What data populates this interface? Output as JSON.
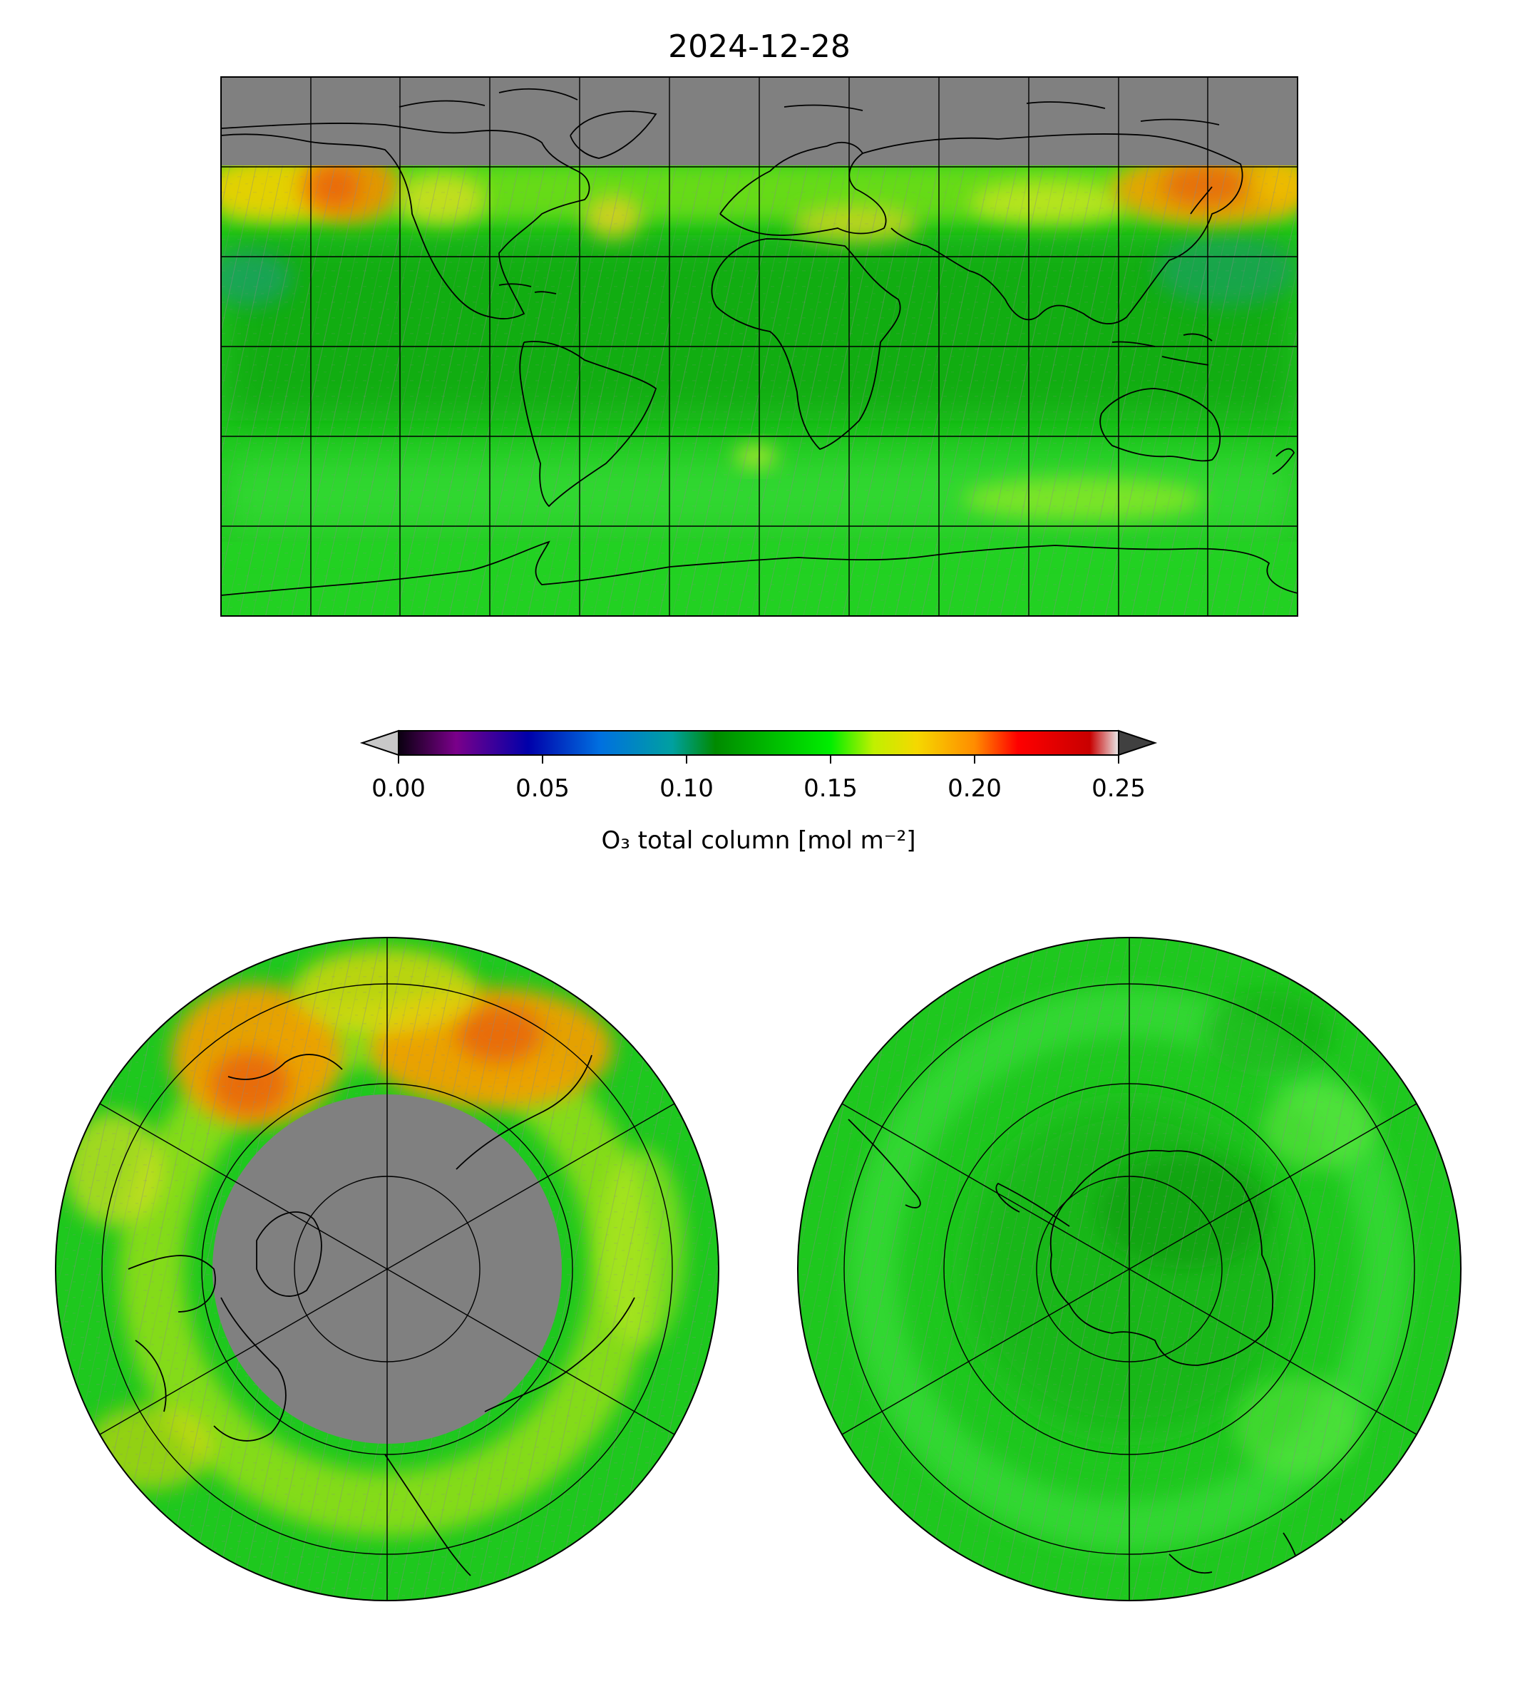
{
  "title": "2024-12-28",
  "colorbar": {
    "label": "O₃ total column [mol m⁻²]",
    "ticks": [
      "0.00",
      "0.05",
      "0.10",
      "0.15",
      "0.20",
      "0.25"
    ],
    "tick_values": [
      0.0,
      0.05,
      0.1,
      0.15,
      0.2,
      0.25
    ],
    "range": [
      0.0,
      0.25
    ],
    "extend": "both",
    "under_color": "#c8c8c8",
    "over_color": "#404040",
    "stops": [
      {
        "v": 0.0,
        "c": "#0a0010"
      },
      {
        "v": 0.02,
        "c": "#7a008a"
      },
      {
        "v": 0.045,
        "c": "#0000aa"
      },
      {
        "v": 0.07,
        "c": "#0070e0"
      },
      {
        "v": 0.095,
        "c": "#00a0a0"
      },
      {
        "v": 0.11,
        "c": "#008a00"
      },
      {
        "v": 0.125,
        "c": "#00b000"
      },
      {
        "v": 0.15,
        "c": "#00ee00"
      },
      {
        "v": 0.165,
        "c": "#c0f000"
      },
      {
        "v": 0.18,
        "c": "#f5d800"
      },
      {
        "v": 0.2,
        "c": "#ff8c00"
      },
      {
        "v": 0.215,
        "c": "#ff0000"
      },
      {
        "v": 0.24,
        "c": "#c80000"
      },
      {
        "v": 0.25,
        "c": "#e8e8e8"
      }
    ]
  },
  "panels": {
    "global": {
      "projection": "PlateCarree",
      "lon_range": [
        -180,
        180
      ],
      "lat_range": [
        -90,
        90
      ],
      "gridline_spacing_deg": 30,
      "fill_missing": "#808080",
      "north_mask_lat": 60
    },
    "north_polar": {
      "projection": "NorthPolarStereo",
      "masked_region": "polar night",
      "fill_missing": "#808080"
    },
    "south_polar": {
      "projection": "SouthPolarStereo"
    }
  },
  "colors": {
    "missing": "#808080",
    "coastline": "#000000",
    "base_field": "#1ec81e",
    "high_field": "#f0a000",
    "peak_field": "#e86010"
  }
}
